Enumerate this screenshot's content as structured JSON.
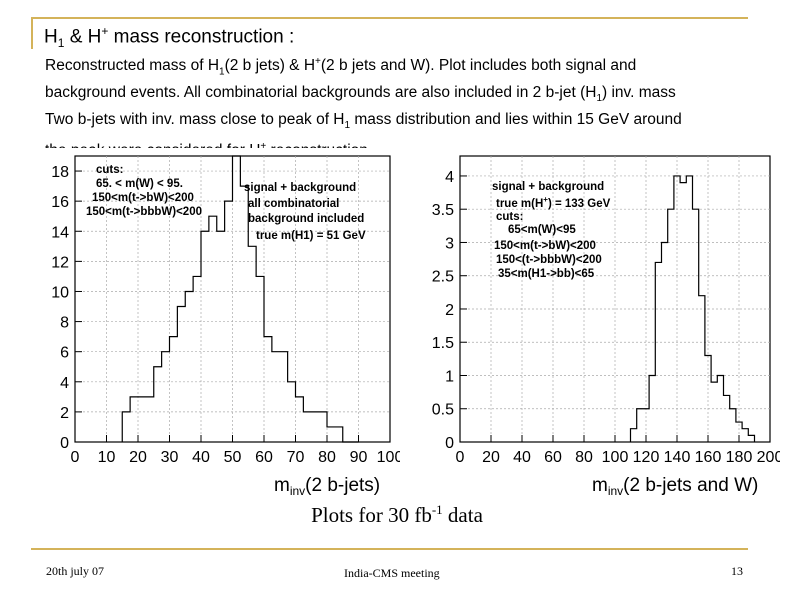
{
  "slide": {
    "title_parts": {
      "a": "H",
      "a_sub": "1",
      "b": " & H",
      "b_sup": "+",
      "c": " mass reconstruction :"
    },
    "description": {
      "l1a": "Reconstructed mass of H",
      "l1a_sub": "1",
      "l1b": "(2 b jets) & H",
      "l1b_sup": "+",
      "l1c": "(2 b jets and W).  Plot includes both signal and",
      "l2": "background events. All combinatorial backgrounds are also included in 2 b-jet (H",
      "l2_sub": "1",
      "l2b": ") inv. mass",
      "l3a": "Two b-jets with inv. mass close to peak of H",
      "l3_sub": "1",
      "l3b": " mass distribution and lies within 15 GeV around",
      "l4": "the peak  were considered for H",
      "l4_sup": "+",
      "l4b": " reconstruction."
    },
    "caption": {
      "a": "Plots for 30 fb",
      "sup": "-1",
      "b": " data"
    },
    "footer": {
      "date": "20th july 07",
      "meeting": "India-CMS meeting",
      "page": "13"
    }
  },
  "colors": {
    "accent": "#d4b35a",
    "hist": "#000000",
    "grid": "#aaaaaa"
  },
  "chart_data": [
    {
      "type": "histogram",
      "xlabel_main": "m",
      "xlabel_sub": "inv",
      "xlabel_rest": "(2 b-jets)",
      "xlim": [
        0,
        100
      ],
      "ylim": [
        0,
        19
      ],
      "xticks": [
        0,
        10,
        20,
        30,
        40,
        50,
        60,
        70,
        80,
        90,
        100
      ],
      "xtick_labels": [
        "0",
        "10",
        "20",
        "30",
        "40",
        "50",
        "60",
        "70",
        "80",
        "90",
        "100"
      ],
      "yticks": [
        0,
        2,
        4,
        6,
        8,
        10,
        12,
        14,
        16,
        18
      ],
      "ytick_labels": [
        "0",
        "2",
        "4",
        "6",
        "8",
        "10",
        "12",
        "14",
        "16",
        "18"
      ],
      "bin_edges": [
        15,
        17.5,
        20,
        22.5,
        25,
        27.5,
        30,
        32.5,
        35,
        37.5,
        40,
        42.5,
        45,
        47.5,
        50,
        52.5,
        55,
        57.5,
        60,
        62.5,
        65,
        67.5,
        70,
        72.5,
        75,
        77.5,
        80,
        82.5,
        85,
        87.5,
        90
      ],
      "values": [
        2,
        3,
        3,
        3,
        5,
        6,
        7,
        9,
        10,
        11,
        14,
        15,
        14,
        16,
        19,
        17,
        13,
        11,
        7,
        6,
        6,
        4,
        3,
        2,
        2,
        2,
        1,
        1,
        0,
        0
      ],
      "annotations": {
        "cuts": [
          "cuts:",
          "65. < m(W) < 95.",
          "150<m(t->bW)<200",
          "150<m(t->bbbW)<200"
        ],
        "info": [
          "signal + background",
          "all combinatorial",
          "background included",
          "true m(H1) = 51 GeV"
        ]
      }
    },
    {
      "type": "histogram",
      "xlabel_main": "m",
      "xlabel_sub": "inv",
      "xlabel_rest": "(2 b-jets and W)",
      "xlim": [
        0,
        200
      ],
      "ylim": [
        0,
        4.3
      ],
      "xticks": [
        0,
        20,
        40,
        60,
        80,
        100,
        120,
        140,
        160,
        180,
        200
      ],
      "xtick_labels": [
        "0",
        "20",
        "40",
        "60",
        "80",
        "100",
        "120",
        "140",
        "160",
        "180",
        "200"
      ],
      "yticks": [
        0,
        0.5,
        1,
        1.5,
        2,
        2.5,
        3,
        3.5,
        4
      ],
      "ytick_labels": [
        "0",
        "0.5",
        "1",
        "1.5",
        "2",
        "2.5",
        "3",
        "3.5",
        "4"
      ],
      "bin_edges": [
        110,
        114,
        118,
        122,
        126,
        130,
        134,
        138,
        142,
        146,
        150,
        154,
        158,
        162,
        166,
        170,
        174,
        178,
        182,
        186,
        190
      ],
      "values": [
        0.2,
        0.5,
        0.5,
        1.0,
        2.7,
        3.0,
        3.5,
        4.0,
        3.9,
        4.0,
        3.5,
        2.2,
        1.3,
        0.9,
        1.0,
        0.7,
        0.5,
        0.3,
        0.2,
        0.1
      ],
      "annotations": {
        "info": [
          "signal + background",
          "true m(H",
          "+",
          ") = 133 GeV"
        ],
        "cuts": [
          "cuts:",
          "65<m(W)<95",
          "150<m(t->bW)<200",
          "150<(t->bbbW)<200",
          "35<m(H1->bb)<65"
        ]
      }
    }
  ]
}
